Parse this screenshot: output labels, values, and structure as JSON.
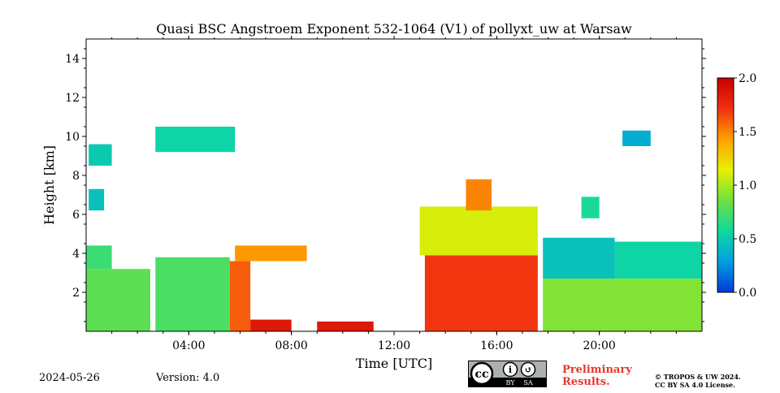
{
  "chart_data": {
    "type": "heatmap",
    "title": "Quasi BSC Angstroem Exponent 532-1064 (V1) of pollyxt_uw at Warsaw",
    "xlabel": "Time [UTC]",
    "ylabel": "Height [km]",
    "xlim_hours": [
      0,
      24
    ],
    "ylim_km": [
      0,
      15
    ],
    "x_ticks": [
      {
        "value": 4,
        "label": "04:00"
      },
      {
        "value": 8,
        "label": "08:00"
      },
      {
        "value": 12,
        "label": "12:00"
      },
      {
        "value": 16,
        "label": "16:00"
      },
      {
        "value": 20,
        "label": "20:00"
      }
    ],
    "y_ticks": [
      {
        "value": 2,
        "label": "2"
      },
      {
        "value": 4,
        "label": "4"
      },
      {
        "value": 6,
        "label": "6"
      },
      {
        "value": 8,
        "label": "8"
      },
      {
        "value": 10,
        "label": "10"
      },
      {
        "value": 12,
        "label": "12"
      },
      {
        "value": 14,
        "label": "14"
      }
    ],
    "colorbar": {
      "range": [
        0.0,
        2.0
      ],
      "ticks": [
        {
          "value": 0.0,
          "label": "0.0"
        },
        {
          "value": 0.5,
          "label": "0.5"
        },
        {
          "value": 1.0,
          "label": "1.0"
        },
        {
          "value": 1.5,
          "label": "1.5"
        },
        {
          "value": 2.0,
          "label": "2.0"
        }
      ],
      "colors": [
        "#0038d8",
        "#00a0e0",
        "#10d8a0",
        "#70e040",
        "#e8f000",
        "#ffa000",
        "#f03010",
        "#c80000"
      ]
    },
    "regions": [
      {
        "t": [
          0.0,
          2.5
        ],
        "h": [
          0.0,
          3.2
        ],
        "value": 0.8
      },
      {
        "t": [
          0.0,
          1.0
        ],
        "h": [
          3.2,
          4.4
        ],
        "value": 0.7
      },
      {
        "t": [
          2.7,
          5.6
        ],
        "h": [
          0.0,
          3.8
        ],
        "value": 0.75
      },
      {
        "t": [
          5.6,
          6.4
        ],
        "h": [
          0.0,
          3.6
        ],
        "value": 1.6
      },
      {
        "t": [
          6.4,
          8.0
        ],
        "h": [
          0.0,
          0.6
        ],
        "value": 1.85
      },
      {
        "t": [
          5.8,
          8.6
        ],
        "h": [
          3.6,
          4.4
        ],
        "value": 1.45
      },
      {
        "t": [
          9.0,
          11.2
        ],
        "h": [
          0.0,
          0.5
        ],
        "value": 1.85
      },
      {
        "t": [
          13.2,
          17.6
        ],
        "h": [
          0.0,
          3.9
        ],
        "value": 1.7
      },
      {
        "t": [
          13.0,
          17.6
        ],
        "h": [
          3.9,
          6.4
        ],
        "value": 1.1
      },
      {
        "t": [
          17.8,
          24.0
        ],
        "h": [
          0.0,
          2.7
        ],
        "value": 0.9
      },
      {
        "t": [
          17.8,
          20.6
        ],
        "h": [
          2.7,
          4.8
        ],
        "value": 0.45
      },
      {
        "t": [
          20.6,
          24.0
        ],
        "h": [
          2.7,
          4.6
        ],
        "value": 0.55
      },
      {
        "t": [
          0.1,
          1.0
        ],
        "h": [
          8.5,
          9.6
        ],
        "value": 0.5
      },
      {
        "t": [
          0.1,
          0.7
        ],
        "h": [
          6.2,
          7.3
        ],
        "value": 0.45
      },
      {
        "t": [
          2.7,
          5.8
        ],
        "h": [
          9.2,
          10.5
        ],
        "value": 0.55
      },
      {
        "t": [
          19.3,
          20.0
        ],
        "h": [
          5.8,
          6.9
        ],
        "value": 0.6
      },
      {
        "t": [
          20.9,
          22.0
        ],
        "h": [
          9.5,
          10.3
        ],
        "value": 0.35
      },
      {
        "t": [
          14.8,
          15.8
        ],
        "h": [
          6.2,
          7.8
        ],
        "value": 1.5
      }
    ]
  },
  "footer": {
    "date": "2024-05-26",
    "version": "Version: 4.0",
    "license_badge": {
      "icons": [
        "cc-icon",
        "by-icon",
        "sa-icon"
      ],
      "labels": [
        "BY",
        "SA"
      ],
      "label_glyphs": [
        "cc",
        "i",
        "↺"
      ]
    },
    "preliminary_line1": "Preliminary",
    "preliminary_line2": "Results.",
    "copyright_line1": "© TROPOS & UW 2024.",
    "copyright_line2": "CC BY SA 4.0 License."
  }
}
